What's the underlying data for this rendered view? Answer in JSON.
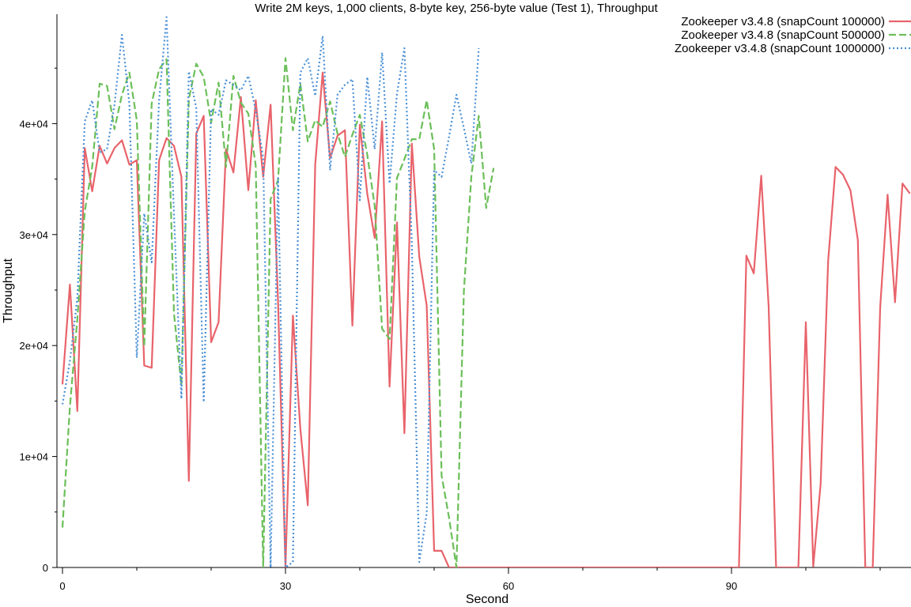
{
  "chart_data": {
    "type": "line",
    "title": "Write 2M keys, 1,000 clients, 8-byte key, 256-byte value (Test 1), Throughput",
    "xlabel": "Second",
    "ylabel": "Throughput",
    "xlim": [
      -1,
      114
    ],
    "ylim": [
      -1000,
      50000
    ],
    "x_ticks": [
      0,
      30,
      60,
      90
    ],
    "x_tick_labels": [
      "0",
      "30",
      "60",
      "90"
    ],
    "x_minor_step": 10,
    "y_ticks": [
      0,
      10000,
      20000,
      30000,
      40000
    ],
    "y_tick_labels": [
      "0",
      "1e+04",
      "2e+04",
      "3e+04",
      "4e+04"
    ],
    "grid": false,
    "legend_position": "top-right",
    "series": [
      {
        "name": "Zookeeper v3.4.8 (snapCount 100000)",
        "color": "#e8636b",
        "dash": "solid",
        "x": [
          0,
          1,
          2,
          3,
          4,
          5,
          6,
          7,
          8,
          9,
          10,
          11,
          12,
          13,
          14,
          15,
          16,
          17,
          18,
          19,
          20,
          21,
          22,
          23,
          24,
          25,
          26,
          27,
          28,
          29,
          30,
          31,
          32,
          33,
          34,
          35,
          36,
          37,
          38,
          39,
          40,
          41,
          42,
          43,
          44,
          45,
          46,
          47,
          48,
          49,
          50,
          51,
          52,
          53,
          91,
          92,
          93,
          94,
          95,
          96,
          97,
          98,
          99,
          100,
          101,
          102,
          103,
          104,
          105,
          106,
          107,
          108,
          109,
          110,
          111,
          112,
          113,
          114
        ],
        "values": [
          16500,
          25500,
          14100,
          37800,
          33900,
          38000,
          36400,
          37800,
          38500,
          36300,
          36700,
          18200,
          18000,
          36700,
          38700,
          38000,
          35200,
          7800,
          39100,
          40700,
          20300,
          22100,
          37700,
          35600,
          42400,
          34000,
          42100,
          35200,
          41700,
          24000,
          0,
          22700,
          12500,
          5600,
          36300,
          44600,
          36900,
          38900,
          39400,
          21800,
          39900,
          33700,
          29700,
          40200,
          16300,
          31100,
          12100,
          38200,
          28000,
          23600,
          1500,
          1500,
          0,
          0,
          0,
          28100,
          26500,
          35300,
          23500,
          0,
          0,
          0,
          0,
          22100,
          100,
          7600,
          27600,
          36100,
          35400,
          34000,
          29500,
          0,
          0,
          23400,
          33600,
          23900,
          34600,
          33700
        ]
      },
      {
        "name": "Zookeeper v3.4.8 (snapCount 500000)",
        "color": "#6bbf59",
        "dash": "dashed",
        "x": [
          0,
          1,
          2,
          3,
          4,
          5,
          6,
          7,
          8,
          9,
          10,
          11,
          12,
          13,
          14,
          15,
          16,
          17,
          18,
          19,
          20,
          21,
          22,
          23,
          24,
          25,
          26,
          27,
          28,
          29,
          30,
          31,
          32,
          33,
          34,
          35,
          36,
          37,
          38,
          39,
          40,
          41,
          42,
          43,
          44,
          45,
          46,
          47,
          48,
          49,
          50,
          51,
          52,
          53,
          54,
          55,
          56,
          57,
          58
        ],
        "values": [
          3600,
          14500,
          22400,
          32100,
          36100,
          43600,
          43400,
          39500,
          42600,
          44600,
          40300,
          19900,
          41800,
          44900,
          45800,
          22900,
          16400,
          42200,
          45400,
          44200,
          40100,
          43700,
          36100,
          44300,
          41900,
          40900,
          36200,
          0,
          33200,
          34900,
          45900,
          39400,
          43600,
          38400,
          40300,
          39700,
          42000,
          39100,
          37000,
          39000,
          40800,
          37200,
          32600,
          21500,
          20600,
          35100,
          36800,
          38600,
          38600,
          42100,
          37700,
          8300,
          4500,
          0,
          24900,
          35200,
          40700,
          32400,
          36000
        ]
      },
      {
        "name": "Zookeeper v3.4.8 (snapCount 1000000)",
        "color": "#4a90d6",
        "dash": "dotted",
        "x": [
          0,
          1,
          2,
          3,
          4,
          5,
          6,
          7,
          8,
          9,
          10,
          11,
          12,
          13,
          14,
          15,
          16,
          17,
          18,
          19,
          20,
          21,
          22,
          23,
          24,
          25,
          26,
          27,
          28,
          29,
          30,
          31,
          32,
          33,
          34,
          35,
          36,
          37,
          38,
          39,
          40,
          41,
          42,
          43,
          44,
          45,
          46,
          47,
          48,
          49,
          50,
          51,
          52,
          53,
          54,
          55,
          56
        ],
        "values": [
          14700,
          18600,
          24300,
          40200,
          42100,
          37400,
          37700,
          41700,
          48000,
          41800,
          18900,
          31900,
          27500,
          42100,
          49600,
          31800,
          15200,
          44700,
          41400,
          14900,
          41300,
          40800,
          43900,
          43500,
          43000,
          44300,
          41200,
          36900,
          0,
          35100,
          0,
          500,
          44600,
          45900,
          42500,
          47900,
          35800,
          42600,
          43500,
          44000,
          33100,
          44200,
          37700,
          46400,
          34600,
          42700,
          46800,
          29100,
          500,
          4900,
          35800,
          35200,
          38800,
          42600,
          39600,
          36400,
          46800
        ]
      }
    ]
  }
}
